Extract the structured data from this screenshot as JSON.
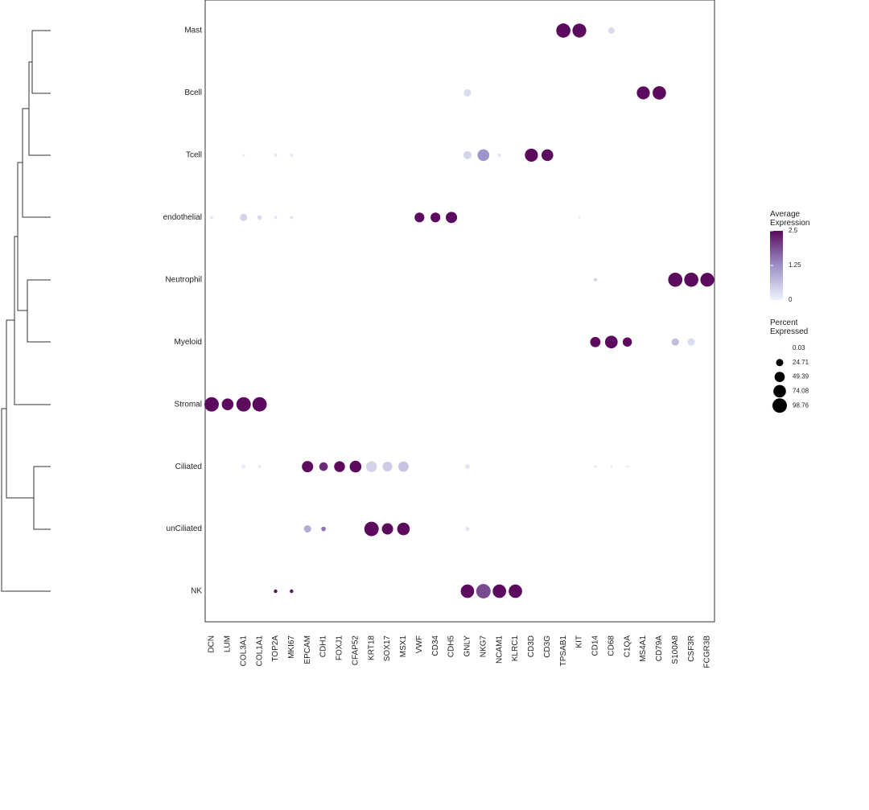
{
  "chart_data": {
    "type": "dotplot",
    "categories": [
      "DCN",
      "LUM",
      "COL3A1",
      "COL1A1",
      "TOP2A",
      "MKI67",
      "EPCAM",
      "CDH1",
      "FOXJ1",
      "CFAP52",
      "KRT18",
      "SOX17",
      "MSX1",
      "VWF",
      "CD34",
      "CDH5",
      "GNLY",
      "NKG7",
      "NCAM1",
      "KLRC1",
      "CD3D",
      "CD3G",
      "TPSAB1",
      "KIT",
      "CD14",
      "CD68",
      "C1QA",
      "MS4A1",
      "CD79A",
      "S100A8",
      "CSF3R",
      "FCGR3B"
    ],
    "rows": [
      "Mast",
      "Bcell",
      "Tcell",
      "endothelial",
      "Neutrophil",
      "Myeloid",
      "Stromal",
      "Ciliated",
      "unCiliated",
      "NK"
    ],
    "points": [
      {
        "x": "TPSAB1",
        "y": "Mast",
        "expression": 2.5,
        "percent": 95
      },
      {
        "x": "KIT",
        "y": "Mast",
        "expression": 2.5,
        "percent": 90
      },
      {
        "x": "CD68",
        "y": "Mast",
        "expression": 0.3,
        "percent": 20
      },
      {
        "x": "GNLY",
        "y": "Bcell",
        "expression": 0.3,
        "percent": 25
      },
      {
        "x": "MS4A1",
        "y": "Bcell",
        "expression": 2.5,
        "percent": 80
      },
      {
        "x": "CD79A",
        "y": "Bcell",
        "expression": 2.5,
        "percent": 85
      },
      {
        "x": "COL3A1",
        "y": "Tcell",
        "expression": 0.1,
        "percent": 3
      },
      {
        "x": "TOP2A",
        "y": "Tcell",
        "expression": 0.2,
        "percent": 4
      },
      {
        "x": "MKI67",
        "y": "Tcell",
        "expression": 0.2,
        "percent": 4
      },
      {
        "x": "GNLY",
        "y": "Tcell",
        "expression": 0.4,
        "percent": 30
      },
      {
        "x": "NKG7",
        "y": "Tcell",
        "expression": 1.2,
        "percent": 65
      },
      {
        "x": "NCAM1",
        "y": "Tcell",
        "expression": 0.2,
        "percent": 5
      },
      {
        "x": "CD3D",
        "y": "Tcell",
        "expression": 2.5,
        "percent": 80
      },
      {
        "x": "CD3G",
        "y": "Tcell",
        "expression": 2.5,
        "percent": 65
      },
      {
        "x": "DCN",
        "y": "endothelial",
        "expression": 0.2,
        "percent": 4
      },
      {
        "x": "COL3A1",
        "y": "endothelial",
        "expression": 0.4,
        "percent": 25
      },
      {
        "x": "COL1A1",
        "y": "endothelial",
        "expression": 0.3,
        "percent": 10
      },
      {
        "x": "TOP2A",
        "y": "endothelial",
        "expression": 0.2,
        "percent": 4
      },
      {
        "x": "MKI67",
        "y": "endothelial",
        "expression": 0.2,
        "percent": 4
      },
      {
        "x": "VWF",
        "y": "endothelial",
        "expression": 2.5,
        "percent": 45
      },
      {
        "x": "CD34",
        "y": "endothelial",
        "expression": 2.5,
        "percent": 45
      },
      {
        "x": "CDH5",
        "y": "endothelial",
        "expression": 2.5,
        "percent": 60
      },
      {
        "x": "KIT",
        "y": "endothelial",
        "expression": 0.1,
        "percent": 3
      },
      {
        "x": "CD14",
        "y": "Neutrophil",
        "expression": 0.4,
        "percent": 5
      },
      {
        "x": "S100A8",
        "y": "Neutrophil",
        "expression": 2.5,
        "percent": 95
      },
      {
        "x": "CSF3R",
        "y": "Neutrophil",
        "expression": 2.5,
        "percent": 95
      },
      {
        "x": "FCGR3B",
        "y": "Neutrophil",
        "expression": 2.5,
        "percent": 90
      },
      {
        "x": "CD14",
        "y": "Myeloid",
        "expression": 2.5,
        "percent": 50
      },
      {
        "x": "CD68",
        "y": "Myeloid",
        "expression": 2.5,
        "percent": 75
      },
      {
        "x": "C1QA",
        "y": "Myeloid",
        "expression": 2.5,
        "percent": 40
      },
      {
        "x": "S100A8",
        "y": "Myeloid",
        "expression": 0.7,
        "percent": 25
      },
      {
        "x": "CSF3R",
        "y": "Myeloid",
        "expression": 0.3,
        "percent": 25
      },
      {
        "x": "DCN",
        "y": "Stromal",
        "expression": 2.5,
        "percent": 98
      },
      {
        "x": "LUM",
        "y": "Stromal",
        "expression": 2.5,
        "percent": 65
      },
      {
        "x": "COL3A1",
        "y": "Stromal",
        "expression": 2.5,
        "percent": 98
      },
      {
        "x": "COL1A1",
        "y": "Stromal",
        "expression": 2.5,
        "percent": 97
      },
      {
        "x": "COL3A1",
        "y": "Ciliated",
        "expression": 0.1,
        "percent": 8
      },
      {
        "x": "COL1A1",
        "y": "Ciliated",
        "expression": 0.1,
        "percent": 5
      },
      {
        "x": "EPCAM",
        "y": "Ciliated",
        "expression": 2.5,
        "percent": 60
      },
      {
        "x": "CDH1",
        "y": "Ciliated",
        "expression": 2.2,
        "percent": 35
      },
      {
        "x": "FOXJ1",
        "y": "Ciliated",
        "expression": 2.5,
        "percent": 55
      },
      {
        "x": "CFAP52",
        "y": "Ciliated",
        "expression": 2.5,
        "percent": 65
      },
      {
        "x": "KRT18",
        "y": "Ciliated",
        "expression": 0.4,
        "percent": 55
      },
      {
        "x": "SOX17",
        "y": "Ciliated",
        "expression": 0.5,
        "percent": 45
      },
      {
        "x": "MSX1",
        "y": "Ciliated",
        "expression": 0.6,
        "percent": 50
      },
      {
        "x": "GNLY",
        "y": "Ciliated",
        "expression": 0.2,
        "percent": 10
      },
      {
        "x": "CD14",
        "y": "Ciliated",
        "expression": 0.1,
        "percent": 3
      },
      {
        "x": "CD68",
        "y": "Ciliated",
        "expression": 0.1,
        "percent": 3
      },
      {
        "x": "C1QA",
        "y": "Ciliated",
        "expression": 0.1,
        "percent": 3
      },
      {
        "x": "EPCAM",
        "y": "unCiliated",
        "expression": 0.9,
        "percent": 25
      },
      {
        "x": "CDH1",
        "y": "unCiliated",
        "expression": 1.5,
        "percent": 10
      },
      {
        "x": "KRT18",
        "y": "unCiliated",
        "expression": 2.5,
        "percent": 98
      },
      {
        "x": "SOX17",
        "y": "unCiliated",
        "expression": 2.5,
        "percent": 60
      },
      {
        "x": "MSX1",
        "y": "unCiliated",
        "expression": 2.5,
        "percent": 75
      },
      {
        "x": "GNLY",
        "y": "unCiliated",
        "expression": 0.2,
        "percent": 8
      },
      {
        "x": "TOP2A",
        "y": "NK",
        "expression": 2.4,
        "percent": 6
      },
      {
        "x": "MKI67",
        "y": "NK",
        "expression": 2.4,
        "percent": 6
      },
      {
        "x": "GNLY",
        "y": "NK",
        "expression": 2.5,
        "percent": 85
      },
      {
        "x": "NKG7",
        "y": "NK",
        "expression": 1.9,
        "percent": 98
      },
      {
        "x": "NCAM1",
        "y": "NK",
        "expression": 2.5,
        "percent": 85
      },
      {
        "x": "KLRC1",
        "y": "NK",
        "expression": 2.5,
        "percent": 85
      }
    ],
    "colors": [
      "#eef3fa",
      "#9b90c8",
      "#5b0a5e"
    ],
    "color_legend": {
      "title": "Average Expression",
      "lim": [
        0,
        2.5
      ],
      "ticks": [
        0,
        1.25,
        2.5
      ]
    },
    "size_legend": {
      "title": "Percent Expressed",
      "values": [
        0.03,
        24.71,
        49.39,
        74.08,
        98.76
      ]
    }
  }
}
